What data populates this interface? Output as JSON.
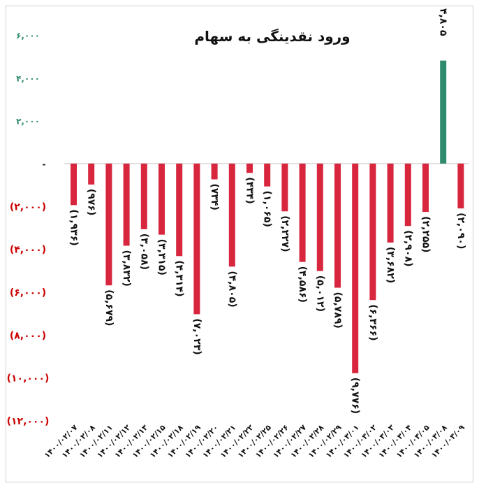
{
  "chart_data": {
    "type": "bar",
    "title": "ورود نقدینگی به سهام",
    "xlabel": "",
    "ylabel": "",
    "ylim": [
      -12000,
      6000
    ],
    "yticks": [
      {
        "value": 6000,
        "label": "۶,۰۰۰"
      },
      {
        "value": 4000,
        "label": "۴,۰۰۰"
      },
      {
        "value": 2000,
        "label": "۲,۰۰۰"
      },
      {
        "value": 0,
        "label": "-"
      },
      {
        "value": -2000,
        "label": "(۲,۰۰۰)"
      },
      {
        "value": -4000,
        "label": "(۴,۰۰۰)"
      },
      {
        "value": -6000,
        "label": "(۶,۰۰۰)"
      },
      {
        "value": -8000,
        "label": "(۸,۰۰۰)"
      },
      {
        "value": -10000,
        "label": "(۱۰,۰۰۰)"
      },
      {
        "value": -12000,
        "label": "(۱۲,۰۰۰)"
      }
    ],
    "categories": [
      "۱۴۰۰/۰۲/۰۷",
      "۱۴۰۰/۰۲/۰۸",
      "۱۴۰۰/۰۲/۱۱",
      "۱۴۰۰/۰۲/۱۲",
      "۱۴۰۰/۰۲/۱۳",
      "۱۴۰۰/۰۲/۱۵",
      "۱۴۰۰/۰۲/۱۸",
      "۱۴۰۰/۰۲/۱۹",
      "۱۴۰۰/۰۲/۲۰",
      "۱۴۰۰/۰۲/۲۱",
      "۱۴۰۰/۰۲/۲۲",
      "۱۴۰۰/۰۲/۲۵",
      "۱۴۰۰/۰۲/۲۶",
      "۱۴۰۰/۰۲/۲۷",
      "۱۴۰۰/۰۲/۲۸",
      "۱۴۰۰/۰۲/۲۹",
      "۱۴۰۰/۰۳/۰۱",
      "۱۴۰۰/۰۳/۰۲",
      "۱۴۰۰/۰۳/۰۳",
      "۱۴۰۰/۰۳/۰۴",
      "۱۴۰۰/۰۳/۰۵",
      "۱۴۰۰/۰۳/۰۸",
      "۱۴۰۰/۰۳/۰۹"
    ],
    "values": [
      -1936,
      -976,
      -5679,
      -3832,
      -3058,
      -3315,
      -4314,
      -7023,
      -734,
      -4805,
      -434,
      -1065,
      -2227,
      -4586,
      -5012,
      -5789,
      -9776,
      -6366,
      -3682,
      -2908,
      -2255,
      4805,
      -2090
    ],
    "data_labels": [
      "(۱,۹۳۶)",
      "(۹۷۶)",
      "(۵,۶۷۹)",
      "(۳,۸۳۲)",
      "(۳,۰۵۸)",
      "(۳,۳۱۵)",
      "(۴,۳۱۴)",
      "(۷,۰۲۳)",
      "(۷۳۴)",
      "(۴,۸۰۵)",
      "(۴۳۴)",
      "(۱,۰۶۵)",
      "(۲,۲۲۷)",
      "(۴,۵۸۶)",
      "(۵,۰۱۲)",
      "(۵,۷۸۹)",
      "(۹,۷۷۶)",
      "(۶,۳۶۶)",
      "(۳,۶۸۲)",
      "(۲,۹۰۸)",
      "(۲,۲۵۵)",
      "۴,۸۰۵",
      "(۲,۰۹۰)"
    ],
    "colors": {
      "negative": "#d7263d",
      "positive": "#2e8b6e",
      "positive_tick_label": "#2e8b6e",
      "negative_tick_label": "#cc0000",
      "zero_tick_label": "#111111",
      "axis": "#bfbfbf",
      "frame": "#cfcfcf"
    },
    "grid": false,
    "legend": "none"
  }
}
